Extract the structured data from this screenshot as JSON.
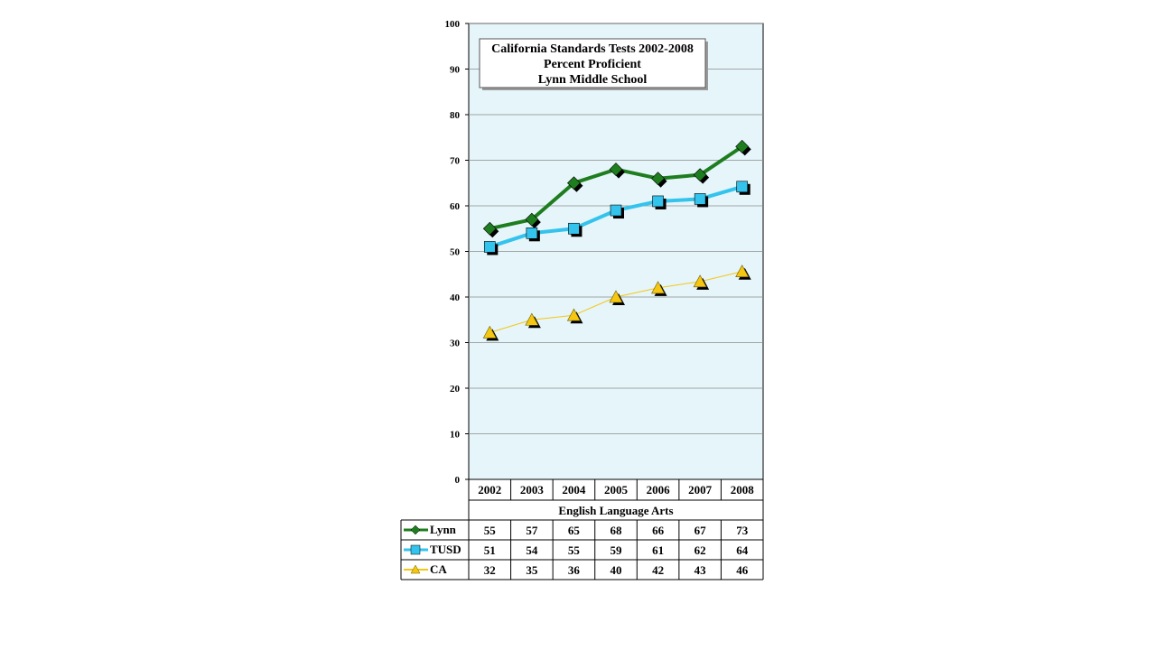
{
  "chart_data": {
    "type": "line",
    "title_lines": [
      "California Standards Tests 2002-2008",
      "Percent Proficient",
      "Lynn Middle School"
    ],
    "xlabel": "English Language Arts",
    "categories": [
      "2002",
      "2003",
      "2004",
      "2005",
      "2006",
      "2007",
      "2008"
    ],
    "ylim": [
      0,
      100
    ],
    "yticks": [
      0,
      10,
      20,
      30,
      40,
      50,
      60,
      70,
      80,
      90,
      100
    ],
    "grid": true,
    "plot_background": "#e5f5fa",
    "series": [
      {
        "name": "Lynn",
        "values": [
          55,
          57,
          65,
          68,
          66,
          67,
          73
        ],
        "plotted": [
          55,
          57,
          65,
          68,
          66,
          66.8,
          73
        ],
        "color": "#1e7d1e",
        "marker": "diamond",
        "line_width": 4
      },
      {
        "name": "TUSD",
        "values": [
          51,
          54,
          55,
          59,
          61,
          62,
          64
        ],
        "plotted": [
          51,
          54,
          55,
          59,
          61,
          61.5,
          64.2
        ],
        "color": "#33c3ec",
        "marker": "square",
        "line_width": 4
      },
      {
        "name": "CA",
        "values": [
          32,
          35,
          36,
          40,
          42,
          43,
          46
        ],
        "plotted": [
          32.2,
          35,
          36,
          40,
          42,
          43.4,
          45.6
        ],
        "color": "#f5c712",
        "marker": "triangle",
        "line_width": 1
      }
    ]
  }
}
